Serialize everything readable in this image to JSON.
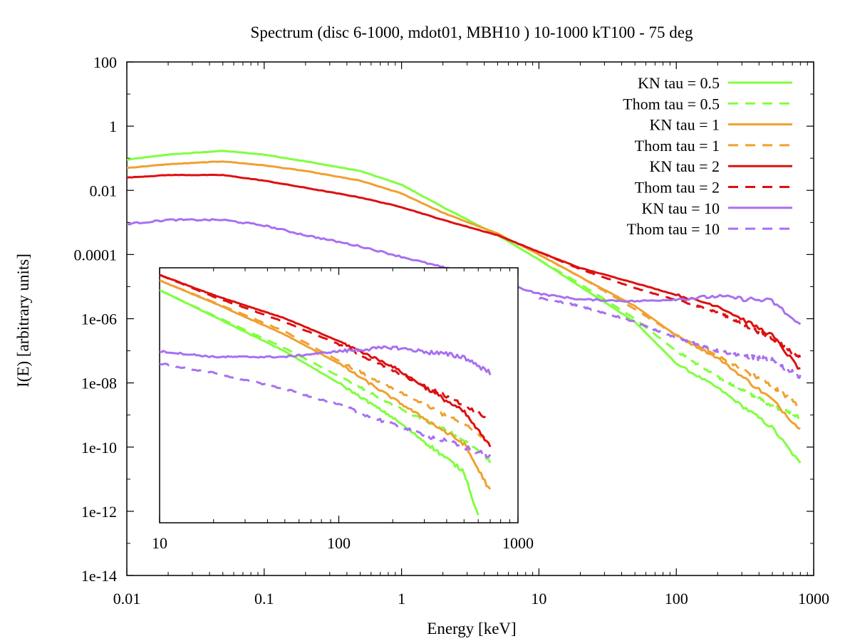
{
  "chart_data": [
    {
      "type": "line",
      "title": "Spectrum (disc 6-1000, mdot01, MBH10 ) 10-1000 kT100 - 75 deg",
      "xlabel": "Energy [keV]",
      "ylabel": "I(E) [arbitrary units]",
      "xscale": "log",
      "yscale": "log",
      "xlim": [
        0.01,
        1000
      ],
      "ylim": [
        1e-14,
        100
      ],
      "xticks": [
        "0.01",
        "0.1",
        "1",
        "10",
        "100",
        "1000"
      ],
      "yticks": [
        "1e-14",
        "1e-12",
        "1e-10",
        "1e-08",
        "1e-06",
        "0.0001",
        "0.01",
        "1",
        "100"
      ],
      "legend_position": "top-right",
      "series": [
        {
          "name": "KN tau = 0.5",
          "color": "#7fff3f",
          "dash": "solid",
          "x": [
            0.01,
            0.02,
            0.05,
            0.1,
            0.2,
            0.5,
            1,
            2,
            5,
            10,
            20,
            50,
            100,
            200,
            500,
            800
          ],
          "y": [
            0.09,
            0.13,
            0.17,
            0.13,
            0.08,
            0.04,
            0.015,
            0.003,
            0.0004,
            7e-05,
            1e-05,
            8e-07,
            4e-08,
            7e-09,
            4e-10,
            3e-11
          ]
        },
        {
          "name": "Thom tau = 0.5",
          "color": "#7fff3f",
          "dash": "dashed",
          "x": [
            10,
            20,
            50,
            100,
            200,
            500,
            800
          ],
          "y": [
            7e-05,
            1.2e-05,
            1e-06,
            1e-07,
            1.5e-08,
            2e-09,
            8e-10
          ]
        },
        {
          "name": "KN tau = 1",
          "color": "#f0a030",
          "dash": "solid",
          "x": [
            0.01,
            0.02,
            0.05,
            0.1,
            0.2,
            0.5,
            1,
            2,
            5,
            10,
            20,
            50,
            100,
            200,
            500,
            800
          ],
          "y": [
            0.05,
            0.065,
            0.08,
            0.06,
            0.04,
            0.02,
            0.008,
            0.002,
            0.00045,
            0.0001,
            2e-05,
            2.5e-06,
            3e-07,
            6e-08,
            3e-09,
            3.5e-10
          ]
        },
        {
          "name": "Thom tau = 1",
          "color": "#f0a030",
          "dash": "dashed",
          "x": [
            10,
            20,
            50,
            100,
            200,
            500,
            800
          ],
          "y": [
            0.0001,
            2e-05,
            2e-06,
            3e-07,
            7e-08,
            8e-09,
            1.8e-09
          ]
        },
        {
          "name": "KN tau = 2",
          "color": "#dd1010",
          "dash": "solid",
          "x": [
            0.01,
            0.02,
            0.05,
            0.1,
            0.2,
            0.5,
            1,
            2,
            5,
            10,
            20,
            50,
            100,
            200,
            500,
            800
          ],
          "y": [
            0.025,
            0.03,
            0.03,
            0.02,
            0.012,
            0.006,
            0.003,
            0.0012,
            0.0004,
            0.00012,
            3.8e-05,
            1.3e-05,
            5.5e-06,
            2.5e-06,
            3e-07,
            2.5e-08
          ]
        },
        {
          "name": "Thom tau = 2",
          "color": "#dd1010",
          "dash": "dashed",
          "x": [
            10,
            20,
            50,
            100,
            200,
            500,
            800
          ],
          "y": [
            0.00012,
            3.5e-05,
            9e-06,
            3.8e-06,
            1.6e-06,
            2.5e-07,
            6e-08
          ]
        },
        {
          "name": "KN tau = 10",
          "color": "#a870f0",
          "dash": "solid",
          "x": [
            0.01,
            0.02,
            0.05,
            0.1,
            0.2,
            0.5,
            1,
            2,
            5,
            10,
            20,
            50,
            100,
            200,
            500,
            800
          ],
          "y": [
            0.0009,
            0.0012,
            0.0012,
            0.0008,
            0.0004,
            0.00018,
            8.5e-05,
            4e-05,
            1.5e-05,
            6e-06,
            4e-06,
            3.5e-06,
            4e-06,
            5e-06,
            3.5e-06,
            6e-07
          ]
        },
        {
          "name": "Thom tau = 10",
          "color": "#a870f0",
          "dash": "dashed",
          "x": [
            10,
            20,
            50,
            100,
            200,
            500,
            800
          ],
          "y": [
            4.5e-06,
            2.5e-06,
            8e-07,
            2.5e-07,
            1e-07,
            5e-08,
            1.5e-08
          ]
        }
      ]
    },
    {
      "type": "line",
      "title": "",
      "xlabel": "",
      "ylabel": "",
      "xscale": "log",
      "yscale": "log",
      "xlim": [
        10,
        1000
      ],
      "ylim": [
        5e-13,
        5e-05
      ],
      "xticks": [
        "10",
        "100",
        "1000"
      ],
      "yticks": [],
      "series": [
        {
          "name": "KN tau = 0.5",
          "color": "#7fff3f",
          "dash": "solid",
          "x": [
            10,
            20,
            50,
            100,
            200,
            500,
            600
          ],
          "y": [
            1e-05,
            1.5e-06,
            1.2e-07,
            1.2e-08,
            1e-09,
            2e-11,
            8e-13
          ]
        },
        {
          "name": "Thom tau = 0.5",
          "color": "#7fff3f",
          "dash": "dashed",
          "x": [
            10,
            20,
            50,
            100,
            200,
            500,
            700
          ],
          "y": [
            1e-05,
            1.6e-06,
            1.5e-07,
            2e-08,
            2.5e-09,
            2e-10,
            4e-11
          ]
        },
        {
          "name": "KN tau = 1",
          "color": "#f0a030",
          "dash": "solid",
          "x": [
            10,
            20,
            50,
            100,
            200,
            500,
            700
          ],
          "y": [
            2e-05,
            4e-06,
            4e-07,
            5e-08,
            4e-09,
            1.5e-10,
            5e-12
          ]
        },
        {
          "name": "Thom tau = 1",
          "color": "#f0a030",
          "dash": "dashed",
          "x": [
            10,
            20,
            50,
            100,
            200,
            500,
            700
          ],
          "y": [
            2e-05,
            4.2e-06,
            5e-07,
            6e-08,
            8e-09,
            6e-10,
            1.8e-10
          ]
        },
        {
          "name": "KN tau = 2",
          "color": "#dd1010",
          "dash": "solid",
          "x": [
            10,
            20,
            50,
            100,
            200,
            500,
            700
          ],
          "y": [
            3e-05,
            7e-06,
            1.3e-06,
            2.5e-07,
            4e-08,
            1.5e-09,
            1.2e-10
          ]
        },
        {
          "name": "Thom tau = 2",
          "color": "#dd1010",
          "dash": "dashed",
          "x": [
            10,
            20,
            50,
            100,
            200,
            500,
            700
          ],
          "y": [
            3e-05,
            6.2e-06,
            1e-06,
            2e-07,
            3e-08,
            2.5e-09,
            8e-10
          ]
        },
        {
          "name": "KN tau = 10",
          "color": "#a870f0",
          "dash": "solid",
          "x": [
            10,
            20,
            50,
            100,
            200,
            500,
            700
          ],
          "y": [
            1.2e-07,
            8e-08,
            8e-08,
            1.2e-07,
            1.6e-07,
            8e-08,
            2.5e-08
          ]
        },
        {
          "name": "Thom tau = 10",
          "color": "#a870f0",
          "dash": "dashed",
          "x": [
            10,
            20,
            50,
            100,
            200,
            500,
            700
          ],
          "y": [
            5e-08,
            2.5e-08,
            8e-09,
            2.5e-09,
            6e-10,
            1.2e-10,
            6e-11
          ]
        }
      ]
    }
  ]
}
